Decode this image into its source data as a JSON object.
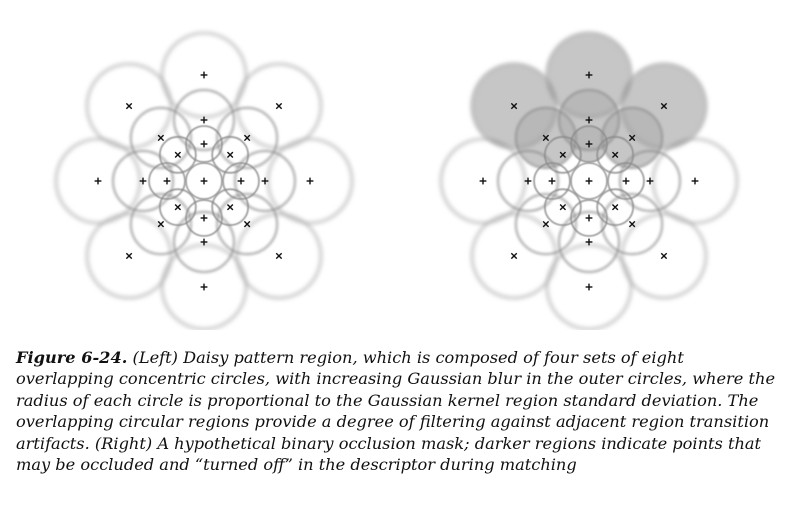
{
  "figure": {
    "label": "Figure 6-24.",
    "caption": "(Left) Daisy pattern region, which is composed of four sets of eight overlapping concentric circles, with increasing Gaussian blur in the outer circles, where the radius of each circle is proportional to the Gaussian kernel region standard deviation. The overlapping circular regions provide a degree of filtering against adjacent region transition artifacts. (Right) A hypothetical binary occlusion mask; darker regions indicate points that may be occluded and “turned off” in the descriptor during matching"
  },
  "panels": [
    {
      "name": "left",
      "occluded_rings": []
    },
    {
      "name": "right",
      "occluded_rings": [
        [
          4,
          1
        ],
        [
          4,
          2
        ],
        [
          4,
          3
        ],
        [
          3,
          1
        ],
        [
          3,
          2
        ],
        [
          3,
          3
        ],
        [
          2,
          2
        ]
      ]
    }
  ],
  "colors": {
    "ring": "#8a8a8a",
    "mask": "#b3b3b3",
    "marker": "#111111"
  }
}
